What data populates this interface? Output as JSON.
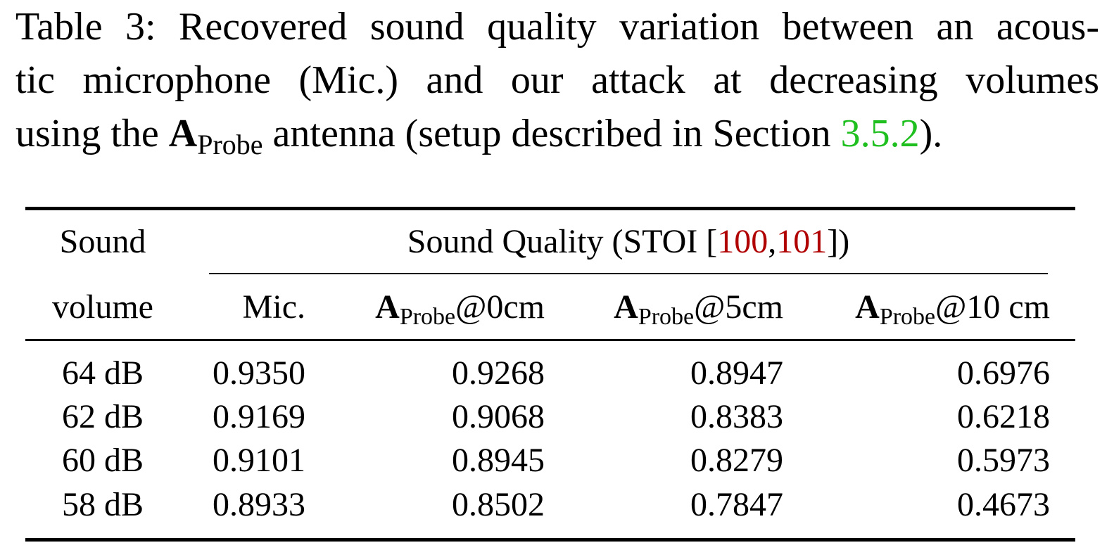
{
  "caption": {
    "line1": "Table 3: Recovered sound quality variation between an acous-",
    "line2": "tic microphone (Mic.) and our attack at decreasing volumes",
    "line3_pre": "using the ",
    "antenna_main": "A",
    "antenna_sub": "Probe",
    "line3_mid": " antenna (setup described in Section ",
    "section_ref": "3.5.2",
    "line3_post": ")."
  },
  "table": {
    "header": {
      "sound_line1": "Sound",
      "sound_line2": "volume",
      "group_pre": "Sound Quality (STOI [",
      "ref1": "100",
      "comma": ",",
      "ref2": "101",
      "group_post": "])",
      "col_mic": "Mic.",
      "antenna_main": "A",
      "antenna_sub": "Probe",
      "col_0cm_suffix": "@0cm",
      "col_5cm_suffix": "@5cm",
      "col_10cm_suffix": "@10 cm"
    },
    "rows": [
      {
        "volume": "64 dB",
        "mic": "0.9350",
        "p0": "0.9268",
        "p5": "0.8947",
        "p10": "0.6976"
      },
      {
        "volume": "62 dB",
        "mic": "0.9169",
        "p0": "0.9068",
        "p5": "0.8383",
        "p10": "0.6218"
      },
      {
        "volume": "60 dB",
        "mic": "0.9101",
        "p0": "0.8945",
        "p5": "0.8279",
        "p10": "0.5973"
      },
      {
        "volume": "58 dB",
        "mic": "0.8933",
        "p0": "0.8502",
        "p5": "0.7847",
        "p10": "0.4673"
      }
    ]
  },
  "colors": {
    "section_link": "#1fbf1f",
    "citation_link": "#b00000"
  }
}
